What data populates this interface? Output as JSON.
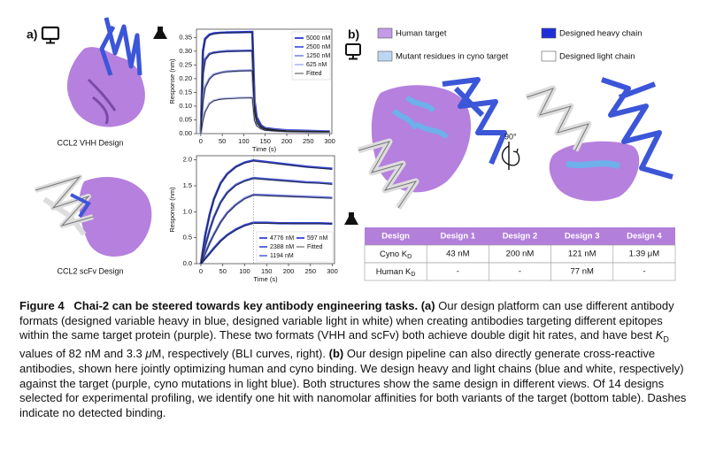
{
  "panel_labels": [
    "a)",
    "b)"
  ],
  "structure_labels": [
    "CCL2 VHH Design",
    "CCL2 scFv Design"
  ],
  "rotation_label": "90°",
  "structure_legend": [
    "Human target",
    "Designed heavy chain",
    "Mutant residues in cyno target",
    "Designed light chain"
  ],
  "chart_data": [
    {
      "type": "line",
      "xlabel": "Time (s)",
      "ylabel": "Response (nm)",
      "x": [
        0,
        5,
        10,
        20,
        30,
        45,
        60,
        90,
        120,
        125,
        130,
        140,
        150,
        175,
        200,
        250,
        300
      ],
      "series": [
        {
          "name": "5000 nM",
          "color": "#2b3bd6",
          "values": [
            0,
            0.3,
            0.345,
            0.36,
            0.365,
            0.367,
            0.368,
            0.369,
            0.37,
            0.12,
            0.06,
            0.03,
            0.02,
            0.015,
            0.012,
            0.01,
            0.008
          ]
        },
        {
          "name": "2500 nM",
          "color": "#4d5de0",
          "values": [
            0,
            0.22,
            0.27,
            0.29,
            0.295,
            0.298,
            0.3,
            0.301,
            0.302,
            0.1,
            0.05,
            0.025,
            0.018,
            0.013,
            0.01,
            0.008,
            0.007
          ]
        },
        {
          "name": "1250 nM",
          "color": "#8a94ea",
          "values": [
            0,
            0.12,
            0.17,
            0.2,
            0.215,
            0.222,
            0.226,
            0.229,
            0.23,
            0.08,
            0.04,
            0.022,
            0.016,
            0.012,
            0.009,
            0.007,
            0.006
          ]
        },
        {
          "name": "625 nM",
          "color": "#b8bef3",
          "values": [
            0,
            0.05,
            0.08,
            0.11,
            0.12,
            0.126,
            0.128,
            0.13,
            0.131,
            0.05,
            0.03,
            0.018,
            0.013,
            0.01,
            0.008,
            0.006,
            0.005
          ]
        }
      ],
      "fitted": {
        "name": "Fitted",
        "color": "#222222",
        "values": [
          [
            0,
            0.29,
            0.34,
            0.358,
            0.363,
            0.366,
            0.367,
            0.368,
            0.369,
            0.11,
            0.055,
            0.028,
            0.019,
            0.014,
            0.011,
            0.009,
            0.008
          ],
          [
            0,
            0.21,
            0.265,
            0.288,
            0.294,
            0.297,
            0.299,
            0.3,
            0.301,
            0.09,
            0.045,
            0.024,
            0.017,
            0.012,
            0.01,
            0.008,
            0.007
          ],
          [
            0,
            0.115,
            0.165,
            0.198,
            0.213,
            0.221,
            0.225,
            0.228,
            0.229,
            0.075,
            0.038,
            0.021,
            0.015,
            0.011,
            0.009,
            0.007,
            0.006
          ],
          [
            0,
            0.048,
            0.078,
            0.108,
            0.119,
            0.125,
            0.127,
            0.129,
            0.13,
            0.048,
            0.028,
            0.017,
            0.012,
            0.009,
            0.007,
            0.006,
            0.005
          ]
        ]
      },
      "xlim": [
        -10,
        305
      ],
      "ylim": [
        0,
        0.38
      ],
      "xticks": [
        0,
        50,
        100,
        150,
        200,
        250,
        300
      ],
      "yticks": [
        {
          "value": 0,
          "label": "0.00"
        },
        0.05,
        {
          "value": 0.1,
          "label": "0.10"
        },
        0.15,
        {
          "value": 0.2,
          "label": "0.20"
        },
        0.25,
        {
          "value": 0.3,
          "label": "0.30"
        },
        0.35
      ],
      "legend": "upper right"
    },
    {
      "type": "line",
      "xlabel": "Time (s)",
      "ylabel": "Response (nm)",
      "x": [
        0,
        10,
        20,
        30,
        45,
        60,
        80,
        100,
        120,
        150,
        180,
        210,
        240,
        270,
        300
      ],
      "series": [
        {
          "name": "4776 nM",
          "color": "#3446d6",
          "values": [
            0,
            0.55,
            0.95,
            1.25,
            1.55,
            1.73,
            1.87,
            1.95,
            1.99,
            1.96,
            1.93,
            1.9,
            1.87,
            1.85,
            1.83
          ]
        },
        {
          "name": "2388 nM",
          "color": "#4a5cdc",
          "values": [
            0,
            0.35,
            0.65,
            0.9,
            1.18,
            1.37,
            1.52,
            1.6,
            1.65,
            1.63,
            1.61,
            1.59,
            1.57,
            1.56,
            1.54
          ]
        },
        {
          "name": "1194 nM",
          "color": "#6878e2",
          "values": [
            0,
            0.2,
            0.4,
            0.57,
            0.8,
            0.98,
            1.14,
            1.26,
            1.33,
            1.32,
            1.31,
            1.3,
            1.29,
            1.28,
            1.27
          ]
        },
        {
          "name": "597 nM",
          "color": "#3446d6",
          "values": [
            0,
            0.1,
            0.2,
            0.3,
            0.44,
            0.55,
            0.66,
            0.74,
            0.79,
            0.79,
            0.78,
            0.78,
            0.78,
            0.78,
            0.77
          ]
        }
      ],
      "fitted": {
        "name": "Fitted",
        "color": "#222222",
        "values": [
          [
            0,
            0.54,
            0.94,
            1.24,
            1.54,
            1.72,
            1.86,
            1.94,
            1.98,
            1.95,
            1.92,
            1.89,
            1.86,
            1.84,
            1.82
          ],
          [
            0,
            0.34,
            0.64,
            0.89,
            1.17,
            1.36,
            1.51,
            1.59,
            1.64,
            1.62,
            1.6,
            1.58,
            1.56,
            1.55,
            1.53
          ],
          [
            0,
            0.19,
            0.39,
            0.56,
            0.79,
            0.97,
            1.13,
            1.25,
            1.32,
            1.31,
            1.3,
            1.29,
            1.28,
            1.27,
            1.26
          ],
          [
            0,
            0.09,
            0.19,
            0.29,
            0.43,
            0.54,
            0.65,
            0.73,
            0.78,
            0.78,
            0.78,
            0.77,
            0.77,
            0.77,
            0.77
          ]
        ]
      },
      "xlim": [
        -10,
        305
      ],
      "ylim": [
        0,
        2.08
      ],
      "xticks": [
        0,
        50,
        100,
        150,
        200,
        250,
        300
      ],
      "yticks": [
        {
          "value": 0,
          "label": "0.0"
        },
        0.5,
        {
          "value": 1,
          "label": "1.0"
        },
        1.5,
        {
          "value": 2,
          "label": "2.0"
        }
      ],
      "legend": "lower right"
    }
  ],
  "table": {
    "header": [
      "Design",
      "Design 1",
      "Design 2",
      "Design 3",
      "Design 4"
    ],
    "rows": [
      [
        {
          "text": "Cyno K",
          "sub": "D"
        },
        "43 nM",
        "200 nM",
        "121 nM",
        "1.39 μM"
      ],
      [
        {
          "text": "Human K",
          "sub": "D"
        },
        "-",
        "-",
        "77 nM",
        "-"
      ]
    ]
  },
  "caption": [
    {
      "text": "Figure 4",
      "style": "bold"
    },
    {
      "text": "   Chai-2 can be steered towards key antibody engineering tasks.",
      "style": "bold"
    },
    {
      "text": " ",
      "style": "normal"
    },
    {
      "text": "(a)",
      "style": "bold"
    },
    {
      "text": " Our design platform can use different antibody formats (designed variable heavy in blue, designed variable light in white) when creating antibodies targeting different epitopes within the same target protein (purple). These two formats (VHH and scFv) both achieve double digit hit rates, and have best ",
      "style": "normal"
    },
    {
      "text": "K",
      "style": "italic"
    },
    {
      "text": "D",
      "style": "sub"
    },
    {
      "text": " values of 82 nM and 3.3 ",
      "style": "normal"
    },
    {
      "text": "μ",
      "style": "italic"
    },
    {
      "text": "M, respectively (BLI curves, right). ",
      "style": "normal"
    },
    {
      "text": "(b)",
      "style": "bold"
    },
    {
      "text": " Our design pipeline can also directly generate cross-reactive antibodies, shown here jointly optimizing human and cyno binding. We design heavy and light chains (blue and white, respectively) against the target (purple, cyno mutations in light blue). Both structures show the same design in different views. Of 14 designs selected for experimental profiling, we identify one hit with nanomolar affinities for both variants of the target (bottom table). Dashes indicate no detected binding.",
      "style": "normal"
    }
  ]
}
